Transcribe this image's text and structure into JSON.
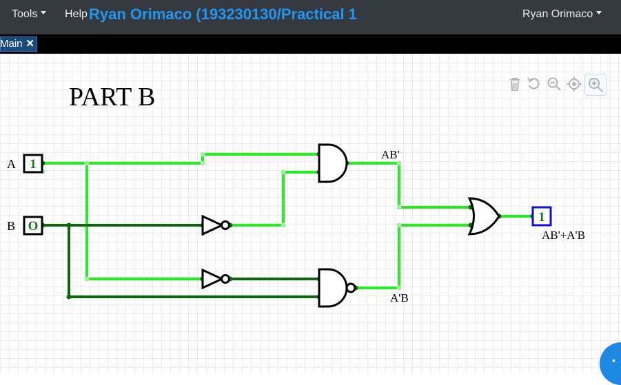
{
  "navbar": {
    "tools_label": "Tools",
    "help_label": "Help",
    "project_title": "Ryan Orimaco (193230130/Practical 1",
    "user_label": "Ryan Orimaco"
  },
  "tabs": [
    {
      "label": "Main",
      "close_icon": "✕"
    }
  ],
  "toolbar": {
    "icons": [
      "trash-icon",
      "undo-icon",
      "zoom-out-icon",
      "recenter-icon",
      "zoom-in-icon"
    ]
  },
  "circuit": {
    "heading": "PART B",
    "inputs": [
      {
        "name": "A",
        "value": "1"
      },
      {
        "name": "B",
        "value": "O"
      }
    ],
    "output": {
      "value": "1",
      "label": "AB'+A'B"
    },
    "wire_labels": {
      "and_out": "AB'",
      "nand_out": "A'B"
    }
  },
  "colors": {
    "wire_on": "#22ee22",
    "wire_off": "#0a6a0a",
    "output_border": "#1010dd",
    "accent": "#2196f3"
  }
}
